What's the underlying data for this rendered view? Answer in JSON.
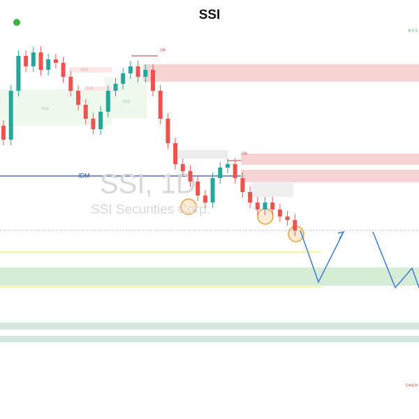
{
  "chart_data": {
    "type": "candlestick",
    "title": "SSI",
    "watermark": "SSI, 1D",
    "watermark_sub": "SSI Securities Corp.",
    "annotations": [
      "IDM",
      "-OB",
      "-OB",
      "B O S",
      "CHoCH",
      "FVG",
      "FVG",
      "FVG",
      "FVG"
    ],
    "up_color": "#26a69a",
    "down_color": "#ef5350",
    "ylim": [
      0,
      600
    ],
    "open": [
      420,
      400,
      470,
      520,
      505,
      525,
      500,
      515,
      510,
      490,
      470,
      450,
      430,
      415,
      440,
      470,
      480,
      495,
      505,
      490,
      500,
      470,
      430,
      395,
      365,
      355,
      340,
      320,
      310,
      345,
      360,
      365,
      345,
      325,
      310,
      300,
      310,
      300,
      290,
      285
    ],
    "high": [
      428,
      478,
      528,
      528,
      533,
      533,
      523,
      523,
      518,
      498,
      478,
      458,
      438,
      448,
      478,
      488,
      503,
      513,
      513,
      508,
      508,
      478,
      438,
      403,
      373,
      363,
      348,
      328,
      353,
      368,
      373,
      373,
      353,
      333,
      318,
      318,
      318,
      308,
      298,
      293
    ],
    "low": [
      392,
      392,
      462,
      497,
      497,
      492,
      492,
      502,
      482,
      462,
      442,
      422,
      407,
      407,
      432,
      462,
      472,
      487,
      482,
      482,
      462,
      422,
      387,
      357,
      347,
      332,
      312,
      302,
      302,
      337,
      352,
      337,
      317,
      302,
      292,
      292,
      292,
      282,
      277,
      262
    ],
    "close": [
      400,
      470,
      520,
      505,
      525,
      500,
      515,
      510,
      490,
      470,
      450,
      430,
      415,
      440,
      470,
      480,
      495,
      505,
      490,
      500,
      470,
      430,
      395,
      365,
      355,
      340,
      320,
      310,
      345,
      360,
      365,
      345,
      325,
      310,
      300,
      310,
      300,
      290,
      285,
      270
    ]
  }
}
